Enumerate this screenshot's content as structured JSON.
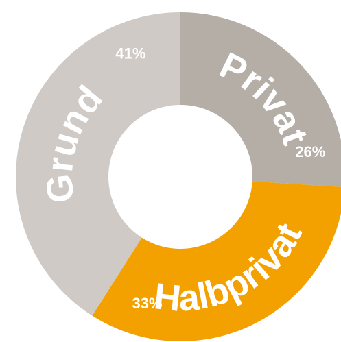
{
  "chart_data": {
    "type": "donut",
    "categories": [
      "Privat",
      "Halbprivat",
      "Grund"
    ],
    "values": [
      26,
      33,
      41
    ],
    "value_labels": [
      "26%",
      "33%",
      "41%"
    ],
    "colors": [
      "#b5aea7",
      "#f2a100",
      "#cfcac6"
    ]
  }
}
